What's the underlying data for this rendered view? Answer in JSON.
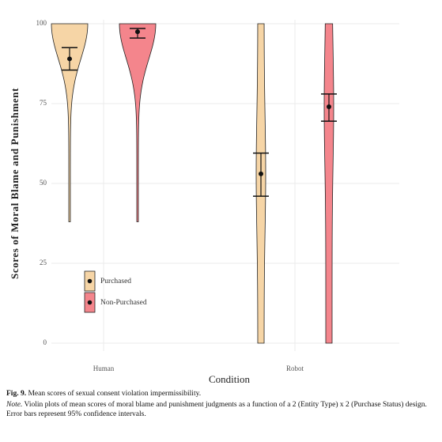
{
  "chart_data": {
    "type": "violin",
    "y_label": "Scores of Moral Blame and Punishment",
    "x_label": "Condition",
    "categories": [
      "Human",
      "Robot"
    ],
    "series": [
      {
        "name": "Purchased",
        "color": "#f6d5a6",
        "values": [
          89,
          53
        ],
        "ci_low": [
          85.5,
          46
        ],
        "ci_high": [
          92.5,
          59.5
        ],
        "min": [
          38,
          0
        ],
        "max": [
          100,
          100
        ]
      },
      {
        "name": "Non-Purchased",
        "color": "#f4858c",
        "values": [
          97.5,
          74
        ],
        "ci_low": [
          95.5,
          69.5
        ],
        "ci_high": [
          98.5,
          78
        ],
        "min": [
          38,
          0
        ],
        "max": [
          100,
          100
        ]
      }
    ],
    "ylim": [
      0,
      100
    ],
    "yticks": [
      0,
      25,
      50,
      75,
      100
    ],
    "grid": true
  },
  "caption": {
    "label": "Fig. 9.",
    "title": "Mean scores of sexual consent violation impermissibility.",
    "note_label": "Note.",
    "note": "Violin plots of mean scores of moral blame and punishment judgments as a function of a 2 (Entity Type) x 2 (Purchase Status) design. Error bars represent 95% confidence intervals."
  }
}
